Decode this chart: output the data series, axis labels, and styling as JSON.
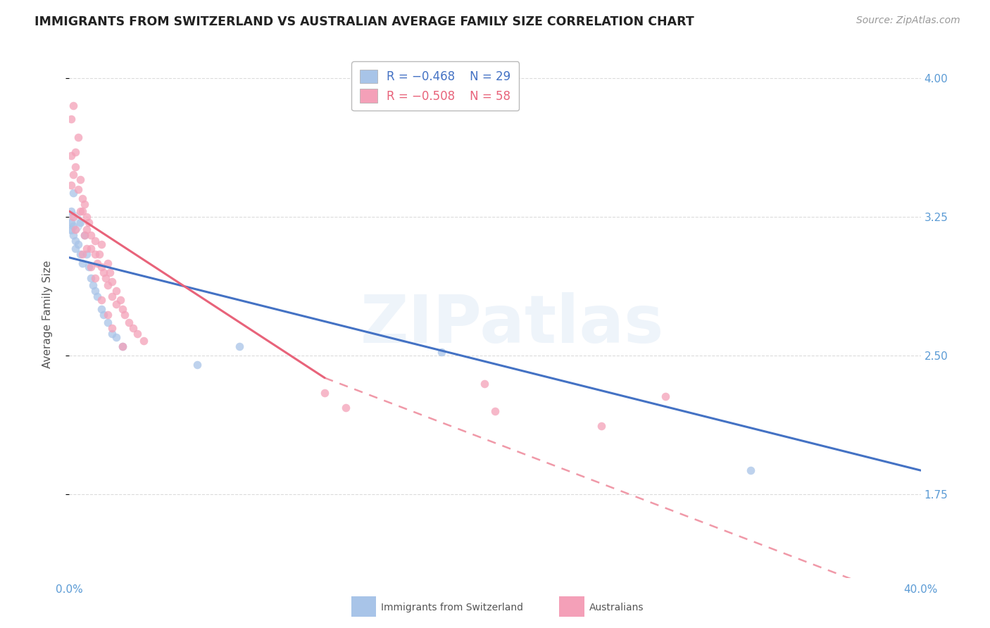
{
  "title": "IMMIGRANTS FROM SWITZERLAND VS AUSTRALIAN AVERAGE FAMILY SIZE CORRELATION CHART",
  "source": "Source: ZipAtlas.com",
  "ylabel": "Average Family Size",
  "yticks": [
    1.75,
    2.5,
    3.25,
    4.0
  ],
  "xmin": 0.0,
  "xmax": 0.4,
  "ymin": 1.3,
  "ymax": 4.15,
  "legend_blue_r": "R = −0.468",
  "legend_blue_n": "N = 29",
  "legend_pink_r": "R = −0.508",
  "legend_pink_n": "N = 58",
  "watermark": "ZIPatlas",
  "blue_color": "#A8C4E8",
  "pink_color": "#F4A0B8",
  "blue_line_color": "#4472C4",
  "pink_line_color": "#E8637A",
  "title_color": "#222222",
  "axis_color": "#5B9BD5",
  "grid_color": "#CCCCCC",
  "title_fontsize": 12.5,
  "source_fontsize": 10,
  "label_fontsize": 11,
  "tick_fontsize": 11,
  "watermark_color": "#C5D8EE",
  "watermark_fontsize": 68,
  "watermark_alpha": 0.28,
  "blue_points": [
    [
      0.001,
      3.28
    ],
    [
      0.001,
      3.22
    ],
    [
      0.001,
      3.18
    ],
    [
      0.002,
      3.2
    ],
    [
      0.002,
      3.15
    ],
    [
      0.003,
      3.12
    ],
    [
      0.003,
      3.08
    ],
    [
      0.004,
      3.1
    ],
    [
      0.005,
      3.05
    ],
    [
      0.005,
      3.22
    ],
    [
      0.006,
      3.0
    ],
    [
      0.007,
      3.15
    ],
    [
      0.008,
      3.05
    ],
    [
      0.009,
      2.98
    ],
    [
      0.01,
      2.92
    ],
    [
      0.011,
      2.88
    ],
    [
      0.012,
      2.85
    ],
    [
      0.013,
      2.82
    ],
    [
      0.015,
      2.75
    ],
    [
      0.016,
      2.72
    ],
    [
      0.018,
      2.68
    ],
    [
      0.02,
      2.62
    ],
    [
      0.022,
      2.6
    ],
    [
      0.025,
      2.55
    ],
    [
      0.175,
      2.52
    ],
    [
      0.06,
      2.45
    ],
    [
      0.08,
      2.55
    ],
    [
      0.32,
      1.88
    ],
    [
      0.002,
      3.38
    ]
  ],
  "pink_points": [
    [
      0.001,
      3.78
    ],
    [
      0.002,
      3.85
    ],
    [
      0.001,
      3.58
    ],
    [
      0.003,
      3.6
    ],
    [
      0.002,
      3.48
    ],
    [
      0.003,
      3.52
    ],
    [
      0.004,
      3.68
    ],
    [
      0.005,
      3.45
    ],
    [
      0.004,
      3.4
    ],
    [
      0.006,
      3.35
    ],
    [
      0.006,
      3.28
    ],
    [
      0.007,
      3.32
    ],
    [
      0.008,
      3.25
    ],
    [
      0.008,
      3.18
    ],
    [
      0.009,
      3.22
    ],
    [
      0.01,
      3.15
    ],
    [
      0.01,
      3.08
    ],
    [
      0.012,
      3.12
    ],
    [
      0.012,
      3.05
    ],
    [
      0.013,
      3.0
    ],
    [
      0.014,
      3.05
    ],
    [
      0.015,
      2.98
    ],
    [
      0.015,
      3.1
    ],
    [
      0.016,
      2.95
    ],
    [
      0.017,
      2.92
    ],
    [
      0.018,
      2.88
    ],
    [
      0.018,
      3.0
    ],
    [
      0.019,
      2.95
    ],
    [
      0.02,
      2.9
    ],
    [
      0.02,
      2.82
    ],
    [
      0.022,
      2.85
    ],
    [
      0.022,
      2.78
    ],
    [
      0.024,
      2.8
    ],
    [
      0.025,
      2.75
    ],
    [
      0.026,
      2.72
    ],
    [
      0.028,
      2.68
    ],
    [
      0.03,
      2.65
    ],
    [
      0.032,
      2.62
    ],
    [
      0.035,
      2.58
    ],
    [
      0.001,
      3.42
    ],
    [
      0.002,
      3.25
    ],
    [
      0.003,
      3.18
    ],
    [
      0.005,
      3.28
    ],
    [
      0.006,
      3.05
    ],
    [
      0.007,
      3.15
    ],
    [
      0.008,
      3.08
    ],
    [
      0.01,
      2.98
    ],
    [
      0.012,
      2.92
    ],
    [
      0.015,
      2.8
    ],
    [
      0.018,
      2.72
    ],
    [
      0.02,
      2.65
    ],
    [
      0.025,
      2.55
    ],
    [
      0.12,
      2.3
    ],
    [
      0.13,
      2.22
    ],
    [
      0.195,
      2.35
    ],
    [
      0.2,
      2.2
    ],
    [
      0.25,
      2.12
    ],
    [
      0.28,
      2.28
    ]
  ],
  "blue_line": [
    0.0,
    3.03,
    0.4,
    1.88
  ],
  "pink_line_solid": [
    0.0,
    3.28,
    0.12,
    2.38
  ],
  "pink_line_dashed": [
    0.12,
    2.38,
    0.4,
    1.15
  ]
}
